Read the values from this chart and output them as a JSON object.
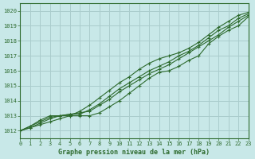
{
  "title": "Graphe pression niveau de la mer (hPa)",
  "bg_color": "#c8e8e8",
  "grid_color": "#aacccc",
  "line_color": "#2d6a2d",
  "marker_color": "#2d6a2d",
  "xlim": [
    0,
    23
  ],
  "ylim": [
    1011.5,
    1020.5
  ],
  "yticks": [
    1012,
    1013,
    1014,
    1015,
    1016,
    1017,
    1018,
    1019,
    1020
  ],
  "xticks": [
    0,
    1,
    2,
    3,
    4,
    5,
    6,
    7,
    8,
    9,
    10,
    11,
    12,
    13,
    14,
    15,
    16,
    17,
    18,
    19,
    20,
    21,
    22,
    23
  ],
  "series": [
    [
      1012.0,
      1012.2,
      1012.4,
      1012.6,
      1012.8,
      1013.0,
      1013.0,
      1013.0,
      1013.2,
      1013.6,
      1014.0,
      1014.5,
      1015.0,
      1015.5,
      1015.9,
      1016.0,
      1016.3,
      1016.7,
      1017.0,
      1017.8,
      1018.3,
      1018.7,
      1019.0,
      1019.6
    ],
    [
      1012.0,
      1012.3,
      1012.6,
      1012.9,
      1013.0,
      1013.1,
      1013.1,
      1013.4,
      1013.8,
      1014.3,
      1014.8,
      1015.2,
      1015.6,
      1016.0,
      1016.3,
      1016.6,
      1017.0,
      1017.3,
      1017.7,
      1018.2,
      1018.7,
      1019.0,
      1019.5,
      1019.8
    ],
    [
      1012.0,
      1012.2,
      1012.5,
      1012.8,
      1013.0,
      1013.1,
      1013.2,
      1013.3,
      1013.7,
      1014.1,
      1014.6,
      1015.0,
      1015.4,
      1015.8,
      1016.1,
      1016.4,
      1016.8,
      1017.2,
      1017.6,
      1018.0,
      1018.4,
      1018.9,
      1019.3,
      1019.7
    ],
    [
      1012.0,
      1012.3,
      1012.7,
      1013.0,
      1013.0,
      1013.0,
      1013.3,
      1013.7,
      1014.2,
      1014.7,
      1015.2,
      1015.6,
      1016.1,
      1016.5,
      1016.8,
      1017.0,
      1017.2,
      1017.5,
      1017.9,
      1018.4,
      1018.9,
      1019.3,
      1019.7,
      1019.9
    ]
  ]
}
